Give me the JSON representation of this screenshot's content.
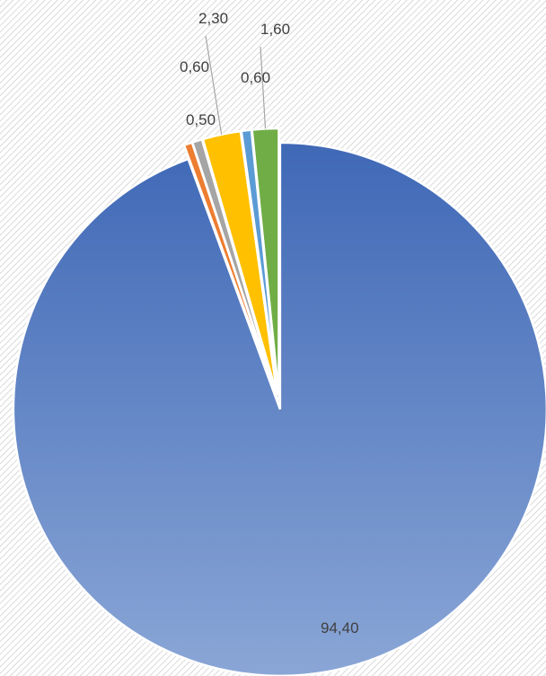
{
  "chart_data": {
    "type": "pie",
    "slices": [
      {
        "value": 94.4,
        "label": "94,40",
        "color": "#4472C4"
      },
      {
        "value": 0.5,
        "label": "0,50",
        "color": "#ED7D31"
      },
      {
        "value": 0.6,
        "label": "0,60",
        "color": "#A5A5A5"
      },
      {
        "value": 2.3,
        "label": "2,30",
        "color": "#FFC000"
      },
      {
        "value": 0.6,
        "label": "0,60",
        "color": "#5B9BD5"
      },
      {
        "value": 1.6,
        "label": "1,60",
        "color": "#70AD47"
      }
    ],
    "exploded": true,
    "data_labels": true,
    "legend": "none",
    "background": "diagonal-hatch"
  }
}
